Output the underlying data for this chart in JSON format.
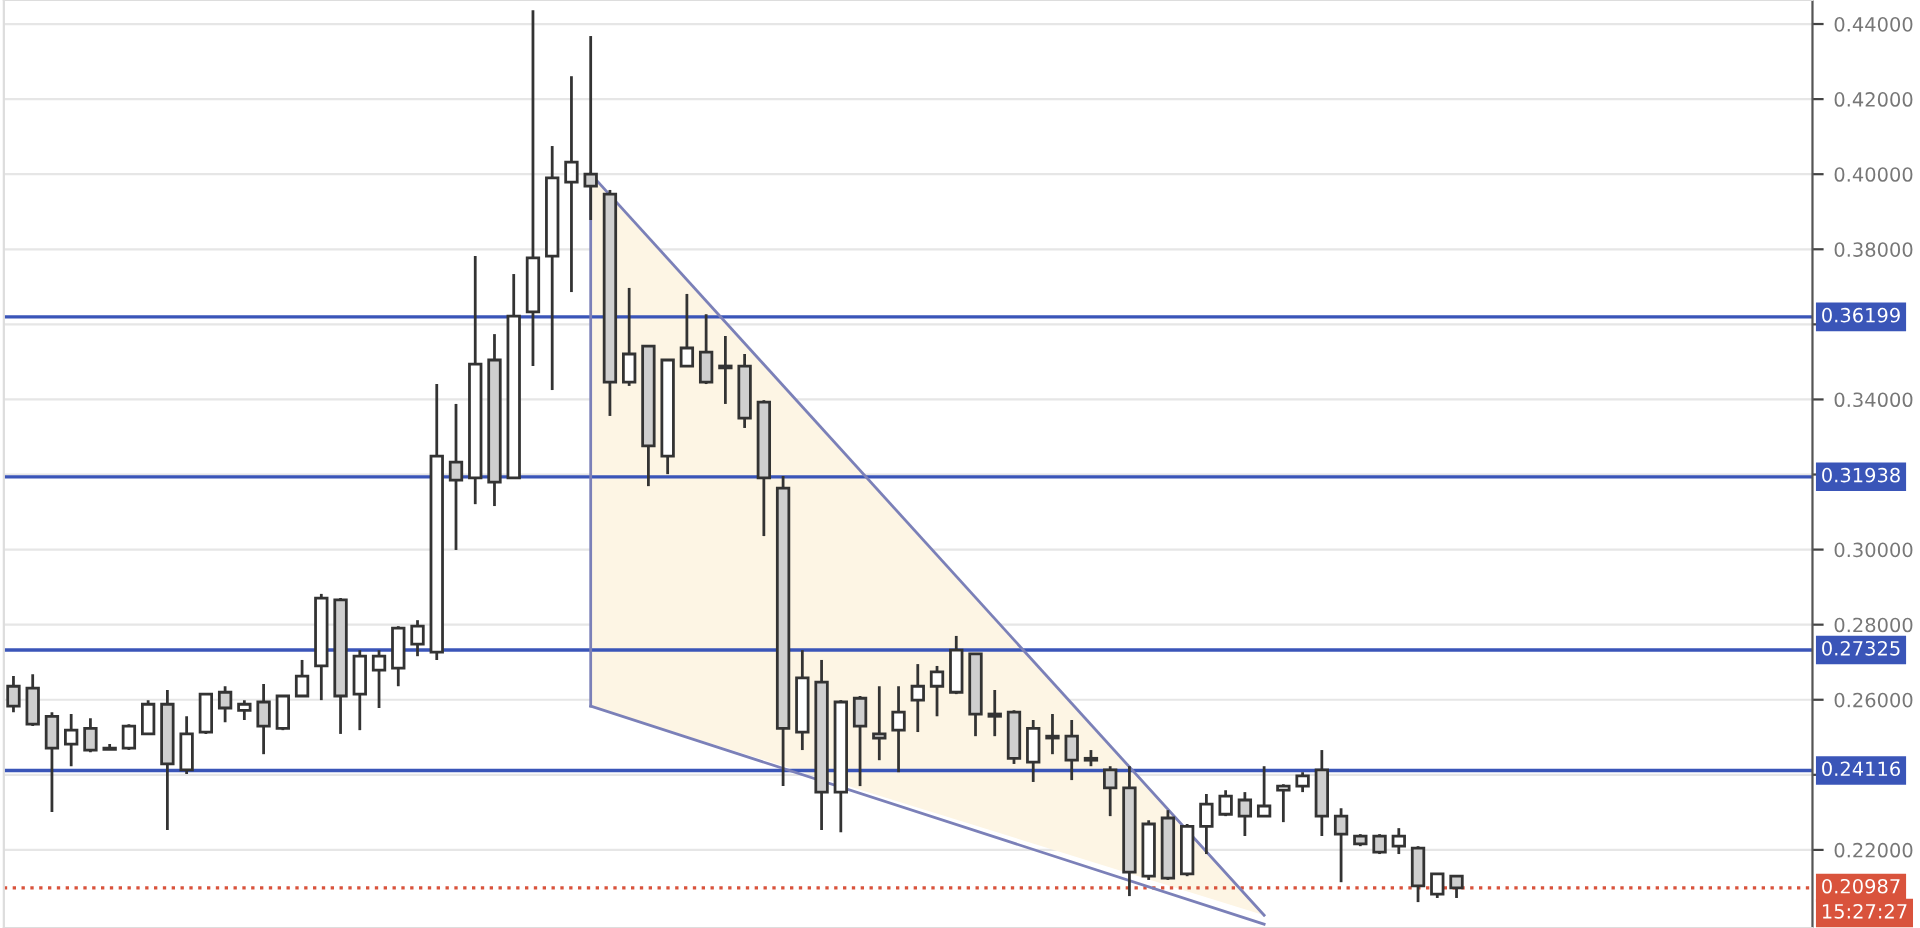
{
  "chart_data": {
    "type": "candlestick",
    "categories": [
      null,
      null,
      null,
      null,
      null,
      null,
      null,
      null,
      null,
      null,
      null,
      null,
      null,
      null,
      null,
      null,
      null,
      null,
      null,
      null,
      null,
      null,
      null,
      null,
      null,
      null,
      null,
      null,
      null,
      null,
      null,
      null,
      null,
      null,
      null,
      null,
      null,
      null,
      null,
      null,
      null,
      null,
      null,
      null,
      null,
      null,
      null,
      null,
      null,
      null,
      null,
      null,
      null,
      null,
      null,
      null,
      null,
      null,
      null,
      null,
      null,
      null,
      null,
      null,
      null,
      null,
      null,
      null,
      null,
      null,
      null,
      null,
      null,
      null,
      null,
      null,
      null,
      null,
      null,
      null,
      null,
      null,
      null,
      null,
      null,
      null,
      null,
      null,
      null,
      null,
      null,
      null,
      null,
      null
    ],
    "ohlc": [
      [
        0.2636,
        0.2663,
        0.2567,
        0.2583
      ],
      [
        0.2631,
        0.2668,
        0.253,
        0.2535
      ],
      [
        0.2556,
        0.2567,
        0.2301,
        0.2471
      ],
      [
        0.2482,
        0.2562,
        0.2423,
        0.2519
      ],
      [
        0.2524,
        0.2551,
        0.246,
        0.2466
      ],
      [
        0.2471,
        0.2482,
        0.2466,
        0.2468
      ],
      [
        0.2471,
        0.2535,
        0.2466,
        0.253
      ],
      [
        0.2509,
        0.2599,
        0.2509,
        0.2588
      ],
      [
        0.2588,
        0.2626,
        0.2253,
        0.2429
      ],
      [
        0.2413,
        0.2556,
        0.2402,
        0.2509
      ],
      [
        0.2514,
        0.2615,
        0.2509,
        0.2615
      ],
      [
        0.262,
        0.2636,
        0.254,
        0.2578
      ],
      [
        0.2572,
        0.2599,
        0.2546,
        0.2588
      ],
      [
        0.2594,
        0.2642,
        0.2455,
        0.253
      ],
      [
        0.2524,
        0.261,
        0.2519,
        0.261
      ],
      [
        0.261,
        0.2706,
        0.261,
        0.2663
      ],
      [
        0.269,
        0.2882,
        0.2599,
        0.2871
      ],
      [
        0.2866,
        0.2871,
        0.2509,
        0.261
      ],
      [
        0.2615,
        0.2732,
        0.2519,
        0.2716
      ],
      [
        0.2679,
        0.2732,
        0.2578,
        0.2716
      ],
      [
        0.2684,
        0.2796,
        0.2636,
        0.2791
      ],
      [
        0.2748,
        0.2812,
        0.2716,
        0.2796
      ],
      [
        0.2727,
        0.3441,
        0.2706,
        0.3249
      ],
      [
        0.3233,
        0.3388,
        0.2999,
        0.3185
      ],
      [
        0.3191,
        0.3782,
        0.3121,
        0.3494
      ],
      [
        0.3505,
        0.3574,
        0.3116,
        0.318
      ],
      [
        0.3191,
        0.3734,
        0.3191,
        0.3622
      ],
      [
        0.3633,
        0.4437,
        0.3489,
        0.3777
      ],
      [
        0.3782,
        0.4075,
        0.3425,
        0.399
      ],
      [
        0.3979,
        0.4261,
        0.3686,
        0.4032
      ],
      [
        0.4,
        0.4368,
        0.3878,
        0.3968
      ],
      [
        0.3947,
        0.3958,
        0.3356,
        0.3446
      ],
      [
        0.3446,
        0.3697,
        0.3436,
        0.3521
      ],
      [
        0.3542,
        0.3542,
        0.3169,
        0.3276
      ],
      [
        0.3249,
        0.3505,
        0.3201,
        0.3505
      ],
      [
        0.3489,
        0.3681,
        0.3489,
        0.3537
      ],
      [
        0.3526,
        0.3627,
        0.3441,
        0.3446
      ],
      [
        0.3489,
        0.3569,
        0.3388,
        0.3484
      ],
      [
        0.3489,
        0.3521,
        0.3324,
        0.335
      ],
      [
        0.3393,
        0.3398,
        0.3036,
        0.3191
      ],
      [
        0.3164,
        0.3196,
        0.237,
        0.2524
      ],
      [
        0.2514,
        0.2732,
        0.2466,
        0.2658
      ],
      [
        0.2647,
        0.2706,
        0.2253,
        0.2354
      ],
      [
        0.2354,
        0.2599,
        0.2247,
        0.2594
      ],
      [
        0.2604,
        0.261,
        0.237,
        0.253
      ],
      [
        0.2509,
        0.2636,
        0.2439,
        0.2498
      ],
      [
        0.2519,
        0.2636,
        0.2407,
        0.2567
      ],
      [
        0.2599,
        0.2695,
        0.2514,
        0.2636
      ],
      [
        0.2636,
        0.269,
        0.2556,
        0.2674
      ],
      [
        0.262,
        0.277,
        0.2615,
        0.2732
      ],
      [
        0.2722,
        0.2722,
        0.2503,
        0.2562
      ],
      [
        0.2562,
        0.2626,
        0.2503,
        0.2556
      ],
      [
        0.2567,
        0.2572,
        0.2429,
        0.2444
      ],
      [
        0.2434,
        0.2546,
        0.2381,
        0.2524
      ],
      [
        0.2503,
        0.2562,
        0.2455,
        0.2498
      ],
      [
        0.2503,
        0.2546,
        0.2386,
        0.2439
      ],
      [
        0.2439,
        0.2466,
        0.2423,
        0.2444
      ],
      [
        0.2413,
        0.2423,
        0.229,
        0.2365
      ],
      [
        0.2365,
        0.2423,
        0.2077,
        0.2141
      ],
      [
        0.213,
        0.2279,
        0.212,
        0.2269
      ],
      [
        0.2285,
        0.2306,
        0.212,
        0.2125
      ],
      [
        0.2136,
        0.2269,
        0.213,
        0.2263
      ],
      [
        0.2263,
        0.2349,
        0.2189,
        0.2322
      ],
      [
        0.2295,
        0.2359,
        0.229,
        0.2343
      ],
      [
        0.2333,
        0.2354,
        0.2237,
        0.229
      ],
      [
        0.229,
        0.2423,
        0.229,
        0.2317
      ],
      [
        0.2359,
        0.2375,
        0.2274,
        0.237
      ],
      [
        0.237,
        0.2407,
        0.2354,
        0.2397
      ],
      [
        0.2413,
        0.2466,
        0.2237,
        0.229
      ],
      [
        0.229,
        0.2311,
        0.2114,
        0.2242
      ],
      [
        0.2237,
        0.2242,
        0.221,
        0.2216
      ],
      [
        0.2237,
        0.2242,
        0.2189,
        0.2194
      ],
      [
        0.221,
        0.2258,
        0.2189,
        0.2237
      ],
      [
        0.2205,
        0.221,
        0.2061,
        0.2104
      ],
      [
        0.2082,
        0.2136,
        0.2072,
        0.2136
      ],
      [
        0.213,
        0.213,
        0.2072,
        0.2099
      ],
      null,
      null,
      null,
      null,
      null,
      null,
      null,
      null,
      null,
      null,
      null,
      null,
      null,
      null,
      null,
      null,
      null,
      null
    ],
    "series": [
      {
        "type": "line",
        "values": [
          null,
          null,
          null,
          null,
          null,
          null,
          null,
          null,
          null,
          null,
          null,
          null,
          null,
          null,
          null,
          null,
          null,
          null,
          null,
          null,
          null,
          null,
          null,
          null,
          null,
          null,
          null,
          null,
          null,
          null,
          0.4001,
          null,
          null,
          null,
          null,
          null,
          null,
          null,
          null,
          null,
          null,
          null,
          null,
          null,
          null,
          null,
          null,
          null,
          null,
          null,
          null,
          null,
          null,
          null,
          null,
          null,
          null,
          null,
          null,
          null,
          null,
          null,
          null,
          null,
          null,
          0.2026,
          null,
          null,
          null,
          null,
          null,
          null,
          null,
          null,
          null,
          null,
          null,
          null,
          null,
          null,
          null,
          null,
          null,
          null,
          null,
          null,
          null,
          null,
          null,
          null,
          null,
          null,
          null,
          null
        ],
        "color": "#7b80b8"
      },
      {
        "type": "line",
        "values": [
          null,
          null,
          null,
          null,
          null,
          null,
          null,
          null,
          null,
          null,
          null,
          null,
          null,
          null,
          null,
          null,
          null,
          null,
          null,
          null,
          null,
          null,
          null,
          null,
          null,
          null,
          null,
          null,
          null,
          null,
          0.2583,
          null,
          null,
          null,
          null,
          null,
          null,
          null,
          null,
          null,
          null,
          null,
          null,
          null,
          null,
          null,
          null,
          null,
          null,
          null,
          null,
          null,
          null,
          null,
          null,
          null,
          null,
          null,
          null,
          null,
          null,
          null,
          null,
          null,
          null,
          0.2002,
          null,
          null,
          null,
          null,
          null,
          null,
          null,
          null,
          null,
          null,
          null,
          null,
          null,
          null,
          null,
          null,
          null,
          null,
          null,
          null,
          null,
          null,
          null,
          null,
          null,
          null,
          null,
          null
        ],
        "color": "#7b80b8"
      }
    ],
    "ylim": [
      0.1992,
      0.4464
    ],
    "yticks": [
      {
        "value": 0.22,
        "label": "0.22000"
      },
      {
        "value": 0.24,
        "label": null
      },
      {
        "value": 0.26,
        "label": "0.26000"
      },
      {
        "value": 0.28,
        "label": "0.28000"
      },
      {
        "value": 0.3,
        "label": "0.30000"
      },
      {
        "value": 0.32,
        "label": null
      },
      {
        "value": 0.34,
        "label": "0.34000"
      },
      {
        "value": 0.36,
        "label": null
      },
      {
        "value": 0.38,
        "label": "0.38000"
      },
      {
        "value": 0.4,
        "label": "0.40000"
      },
      {
        "value": 0.42,
        "label": "0.42000"
      },
      {
        "value": 0.44,
        "label": "0.44000"
      }
    ],
    "ref_lines": [
      {
        "axis": "y",
        "value": 0.36199,
        "label": "0.36199",
        "color": "#3a55b8"
      },
      {
        "axis": "y",
        "value": 0.31938,
        "label": "0.31938",
        "color": "#3a55b8"
      },
      {
        "axis": "y",
        "value": 0.27325,
        "label": "0.27325",
        "color": "#3a55b8"
      },
      {
        "axis": "y",
        "value": 0.24116,
        "label": "0.24116",
        "color": "#3a55b8"
      },
      {
        "axis": "y",
        "value": 0.20987,
        "label": "0.20987",
        "color": "#d9533c",
        "line_style": "dotted"
      }
    ],
    "annotations": [
      "15:27:27"
    ],
    "grid": "y",
    "tick_labels": "y"
  }
}
